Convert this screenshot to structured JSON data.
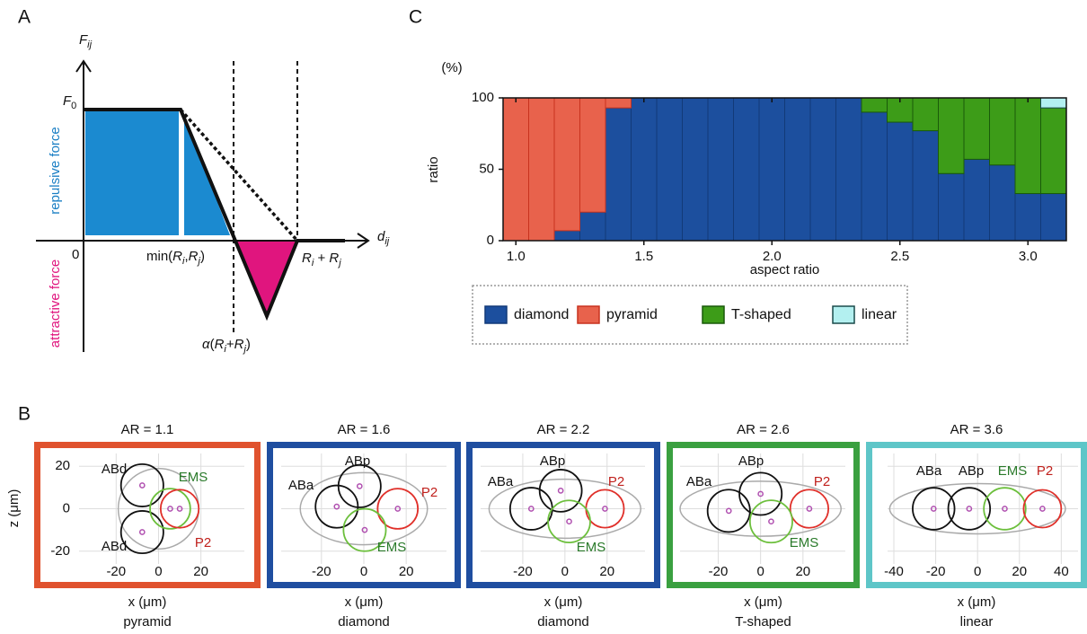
{
  "panel_labels": {
    "a": "A",
    "b": "B",
    "c": "C"
  },
  "diagram_a": {
    "y_axis_label": [
      {
        "text": "F",
        "italic": true
      },
      {
        "text": "ij",
        "italic": true,
        "sub": true
      }
    ],
    "f0_label": [
      {
        "text": "F",
        "italic": true
      },
      {
        "text": "0",
        "sub": true
      }
    ],
    "x_axis_label": [
      {
        "text": "d",
        "italic": true
      },
      {
        "text": "ij",
        "italic": true,
        "sub": true
      }
    ],
    "origin_label": [
      {
        "text": "0"
      }
    ],
    "min_label": [
      {
        "text": "min("
      },
      {
        "text": "R",
        "italic": true
      },
      {
        "text": "i",
        "italic": true,
        "sub": true
      },
      {
        "text": ","
      },
      {
        "text": "R",
        "italic": true
      },
      {
        "text": "j",
        "italic": true,
        "sub": true
      },
      {
        "text": ")"
      }
    ],
    "alpha_label": [
      {
        "text": "α",
        "italic": true
      },
      {
        "text": "("
      },
      {
        "text": "R",
        "italic": true
      },
      {
        "text": "i",
        "italic": true,
        "sub": true
      },
      {
        "text": "+"
      },
      {
        "text": "R",
        "italic": true
      },
      {
        "text": "j",
        "italic": true,
        "sub": true
      },
      {
        "text": ")"
      }
    ],
    "sum_label": [
      {
        "text": "R",
        "italic": true
      },
      {
        "text": "i",
        "italic": true,
        "sub": true
      },
      {
        "text": " + "
      },
      {
        "text": "R",
        "italic": true
      },
      {
        "text": "j",
        "italic": true,
        "sub": true
      }
    ],
    "repulsive": "repulsive force",
    "attractive": "attractive force"
  },
  "chart_data": {
    "type": "bar",
    "stacked": true,
    "y_unit": "(%)",
    "y_label": "ratio",
    "x_label": "aspect ratio",
    "x": [
      1.0,
      1.1,
      1.2,
      1.3,
      1.4,
      1.5,
      1.6,
      1.7,
      1.8,
      1.9,
      2.0,
      2.1,
      2.2,
      2.3,
      2.4,
      2.5,
      2.6,
      2.7,
      2.8,
      2.9,
      3.0,
      3.1
    ],
    "bar_width": 0.1,
    "xlim": [
      0.95,
      3.15
    ],
    "xticks": [
      {
        "value": 1,
        "label": "1.0"
      },
      1.5,
      {
        "value": 2,
        "label": "2.0"
      },
      2.5,
      {
        "value": 3,
        "label": "3.0"
      }
    ],
    "ylim": [
      0,
      100
    ],
    "yticks": [
      0,
      50,
      100
    ],
    "series": [
      {
        "name": "diamond",
        "color": "#1c4f9e",
        "edge_color": "#123a78",
        "values": [
          0,
          0,
          7,
          20,
          93,
          100,
          100,
          100,
          100,
          100,
          100,
          100,
          100,
          100,
          90,
          83,
          77,
          47,
          57,
          53,
          33,
          33
        ]
      },
      {
        "name": "pyramid",
        "color": "#e8624c",
        "edge_color": "#c8321e",
        "values": [
          100,
          100,
          93,
          80,
          7,
          0,
          0,
          0,
          0,
          0,
          0,
          0,
          0,
          0,
          0,
          0,
          0,
          0,
          0,
          0,
          0,
          0
        ]
      },
      {
        "name": "T-shaped",
        "color": "#3d9c18",
        "edge_color": "#1a5a0a",
        "values": [
          0,
          0,
          0,
          0,
          0,
          0,
          0,
          0,
          0,
          0,
          0,
          0,
          0,
          0,
          10,
          17,
          23,
          53,
          43,
          47,
          67,
          60
        ]
      },
      {
        "name": "linear",
        "color": "#b3f0f0",
        "edge_color": "#1a4a4a",
        "values": [
          0,
          0,
          0,
          0,
          0,
          0,
          0,
          0,
          0,
          0,
          0,
          0,
          0,
          0,
          0,
          0,
          0,
          0,
          0,
          0,
          0,
          7
        ]
      }
    ]
  },
  "panel_b": {
    "z_label": "z (μm)",
    "zlim": [
      -26,
      26
    ],
    "zticks": [
      20,
      0,
      -20
    ],
    "panels": [
      {
        "title": "AR = 1.1",
        "category": "pyramid",
        "frame_color": "#e0522e",
        "x_label": "x (μm)",
        "xlim": [
          -37.5,
          40.5
        ],
        "xticks": [
          -20,
          0,
          20
        ],
        "shell": {
          "rx": 19,
          "rz": 19
        },
        "cells": [
          {
            "label": "ABd",
            "x": -7.7,
            "z": 11,
            "r": 10,
            "color": "#111111",
            "label_color": "#111111"
          },
          {
            "label": "ABd",
            "x": -7.7,
            "z": -11,
            "r": 10,
            "color": "#111111",
            "label_color": "#111111"
          },
          {
            "label": "EMS",
            "x": 5.5,
            "z": 0,
            "r": 9.5,
            "color": "#6cbf3c",
            "label_color": "#2a7a2a"
          },
          {
            "label": "P2",
            "x": 10,
            "z": 0,
            "r": 9,
            "color": "#e0302a",
            "label_color": "#c0201c"
          }
        ]
      },
      {
        "title": "AR = 1.6",
        "category": "diamond",
        "frame_color": "#1f4ea0",
        "x_label": "x (μm)",
        "xlim": [
          -39,
          39
        ],
        "xticks": [
          -20,
          0,
          20
        ],
        "shell": {
          "rx": 30,
          "rz": 17
        },
        "cells": [
          {
            "label": "ABa",
            "x": -12.8,
            "z": 1,
            "r": 10,
            "color": "#111111",
            "label_color": "#111111"
          },
          {
            "label": "ABp",
            "x": -2,
            "z": 10.6,
            "r": 10,
            "color": "#111111",
            "label_color": "#111111"
          },
          {
            "label": "P2",
            "x": 16,
            "z": 0,
            "r": 9.5,
            "color": "#e0302a",
            "label_color": "#c0201c"
          },
          {
            "label": "EMS",
            "x": 0.4,
            "z": -10,
            "r": 10,
            "color": "#6cbf3c",
            "label_color": "#2a7a2a"
          }
        ]
      },
      {
        "title": "AR = 2.2",
        "category": "diamond",
        "frame_color": "#1f4ea0",
        "x_label": "x (μm)",
        "xlim": [
          -40,
          38
        ],
        "xticks": [
          -20,
          0,
          20
        ],
        "shell": {
          "rx": 36,
          "rz": 14
        },
        "cells": [
          {
            "label": "ABa",
            "x": -16,
            "z": 0,
            "r": 10,
            "color": "#111111",
            "label_color": "#111111"
          },
          {
            "label": "ABp",
            "x": -2,
            "z": 8.5,
            "r": 10,
            "color": "#111111",
            "label_color": "#111111"
          },
          {
            "label": "P2",
            "x": 19,
            "z": 0,
            "r": 9,
            "color": "#e0302a",
            "label_color": "#c0201c"
          },
          {
            "label": "EMS",
            "x": 2,
            "z": -6,
            "r": 10,
            "color": "#6cbf3c",
            "label_color": "#2a7a2a"
          }
        ]
      },
      {
        "title": "AR = 2.6",
        "category": "T-shaped",
        "frame_color": "#3aa040",
        "x_label": "x (μm)",
        "xlim": [
          -38,
          40
        ],
        "xticks": [
          -20,
          0,
          20
        ],
        "shell": {
          "rx": 38,
          "rz": 13
        },
        "cells": [
          {
            "label": "ABa",
            "x": -15,
            "z": -1,
            "r": 10,
            "color": "#111111",
            "label_color": "#111111"
          },
          {
            "label": "ABp",
            "x": 0,
            "z": 7,
            "r": 10,
            "color": "#111111",
            "label_color": "#111111"
          },
          {
            "label": "P2",
            "x": 23,
            "z": 0,
            "r": 9,
            "color": "#e0302a",
            "label_color": "#c0201c"
          },
          {
            "label": "EMS",
            "x": 5,
            "z": -6,
            "r": 10,
            "color": "#6cbf3c",
            "label_color": "#2a7a2a"
          }
        ]
      },
      {
        "title": "AR = 3.6",
        "category": "linear",
        "frame_color": "#5ec6c8",
        "x_label": "x (μm)",
        "xlim": [
          -43,
          48
        ],
        "xticks": [
          -40,
          -20,
          0,
          20,
          40
        ],
        "shell": {
          "rx": 42,
          "rz": 12
        },
        "cells": [
          {
            "label": "ABa",
            "x": -21,
            "z": 0,
            "r": 10,
            "color": "#111111",
            "label_color": "#111111"
          },
          {
            "label": "ABp",
            "x": -4,
            "z": 0,
            "r": 10,
            "color": "#111111",
            "label_color": "#111111"
          },
          {
            "label": "EMS",
            "x": 13,
            "z": 0,
            "r": 10,
            "color": "#6cbf3c",
            "label_color": "#2a7a2a"
          },
          {
            "label": "P2",
            "x": 31,
            "z": 0,
            "r": 9,
            "color": "#e0302a",
            "label_color": "#c0201c"
          }
        ]
      }
    ]
  }
}
